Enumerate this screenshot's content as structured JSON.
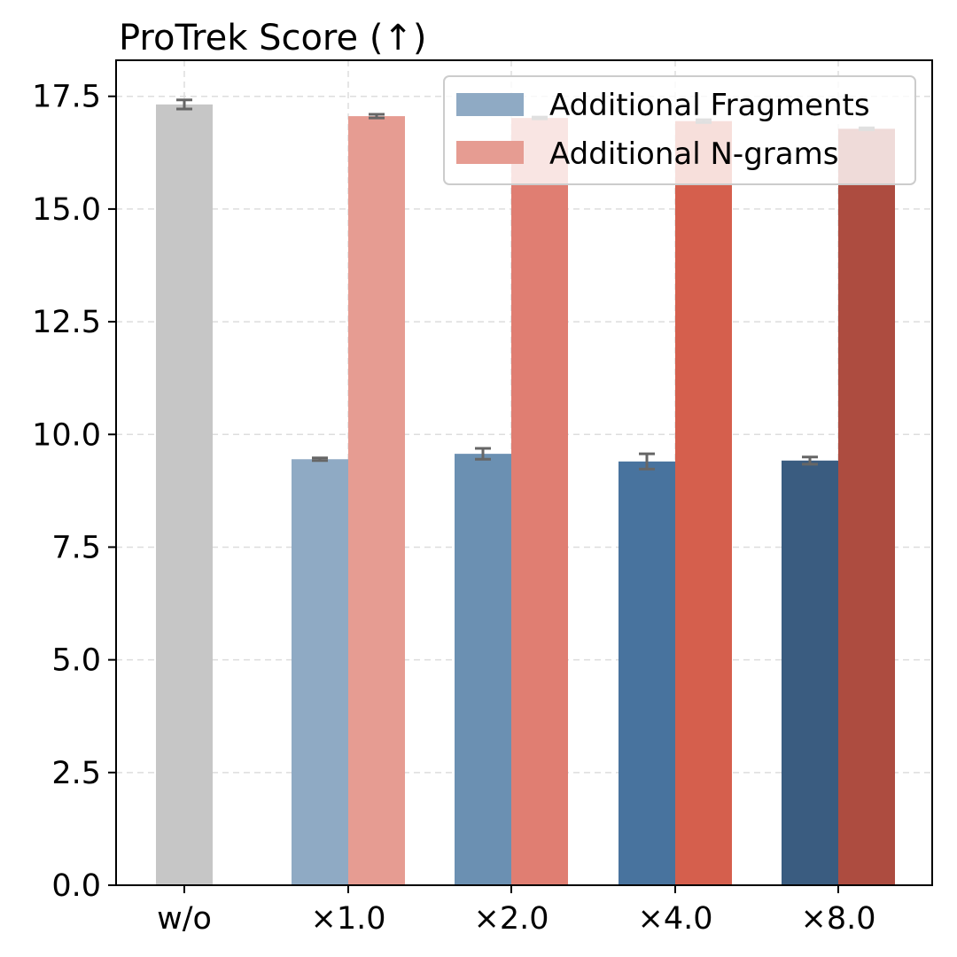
{
  "chart_data": {
    "type": "bar",
    "title": "ProTrek Score (↑)",
    "xlabel": "",
    "ylabel": "",
    "ylim": [
      0,
      18.3
    ],
    "yticks": [
      "0.0",
      "2.5",
      "5.0",
      "7.5",
      "10.0",
      "12.5",
      "15.0",
      "17.5"
    ],
    "categories": [
      "w/o",
      "×1.0",
      "×2.0",
      "×4.0",
      "×8.0"
    ],
    "grid": true,
    "legend_position": "top-right",
    "baseline": {
      "category": "w/o",
      "value": 17.32,
      "error": 0.1,
      "color": "#c6c6c6"
    },
    "series": [
      {
        "name": "Additional Fragments",
        "legend_color": "#8faac4",
        "values": [
          null,
          9.45,
          9.57,
          9.4,
          9.42
        ],
        "errors": [
          null,
          0.03,
          0.12,
          0.17,
          0.08
        ],
        "colors": [
          null,
          "#8faac4",
          "#6b90b2",
          "#48739e",
          "#3a5c80"
        ]
      },
      {
        "name": "Additional N-grams",
        "legend_color": "#e69c92",
        "values": [
          null,
          17.06,
          17.02,
          16.95,
          16.78
        ],
        "errors": [
          null,
          0.04,
          0.02,
          0.03,
          0.02
        ],
        "colors": [
          null,
          "#e69c92",
          "#e07e72",
          "#d55f4d",
          "#ad4c40"
        ]
      }
    ]
  }
}
